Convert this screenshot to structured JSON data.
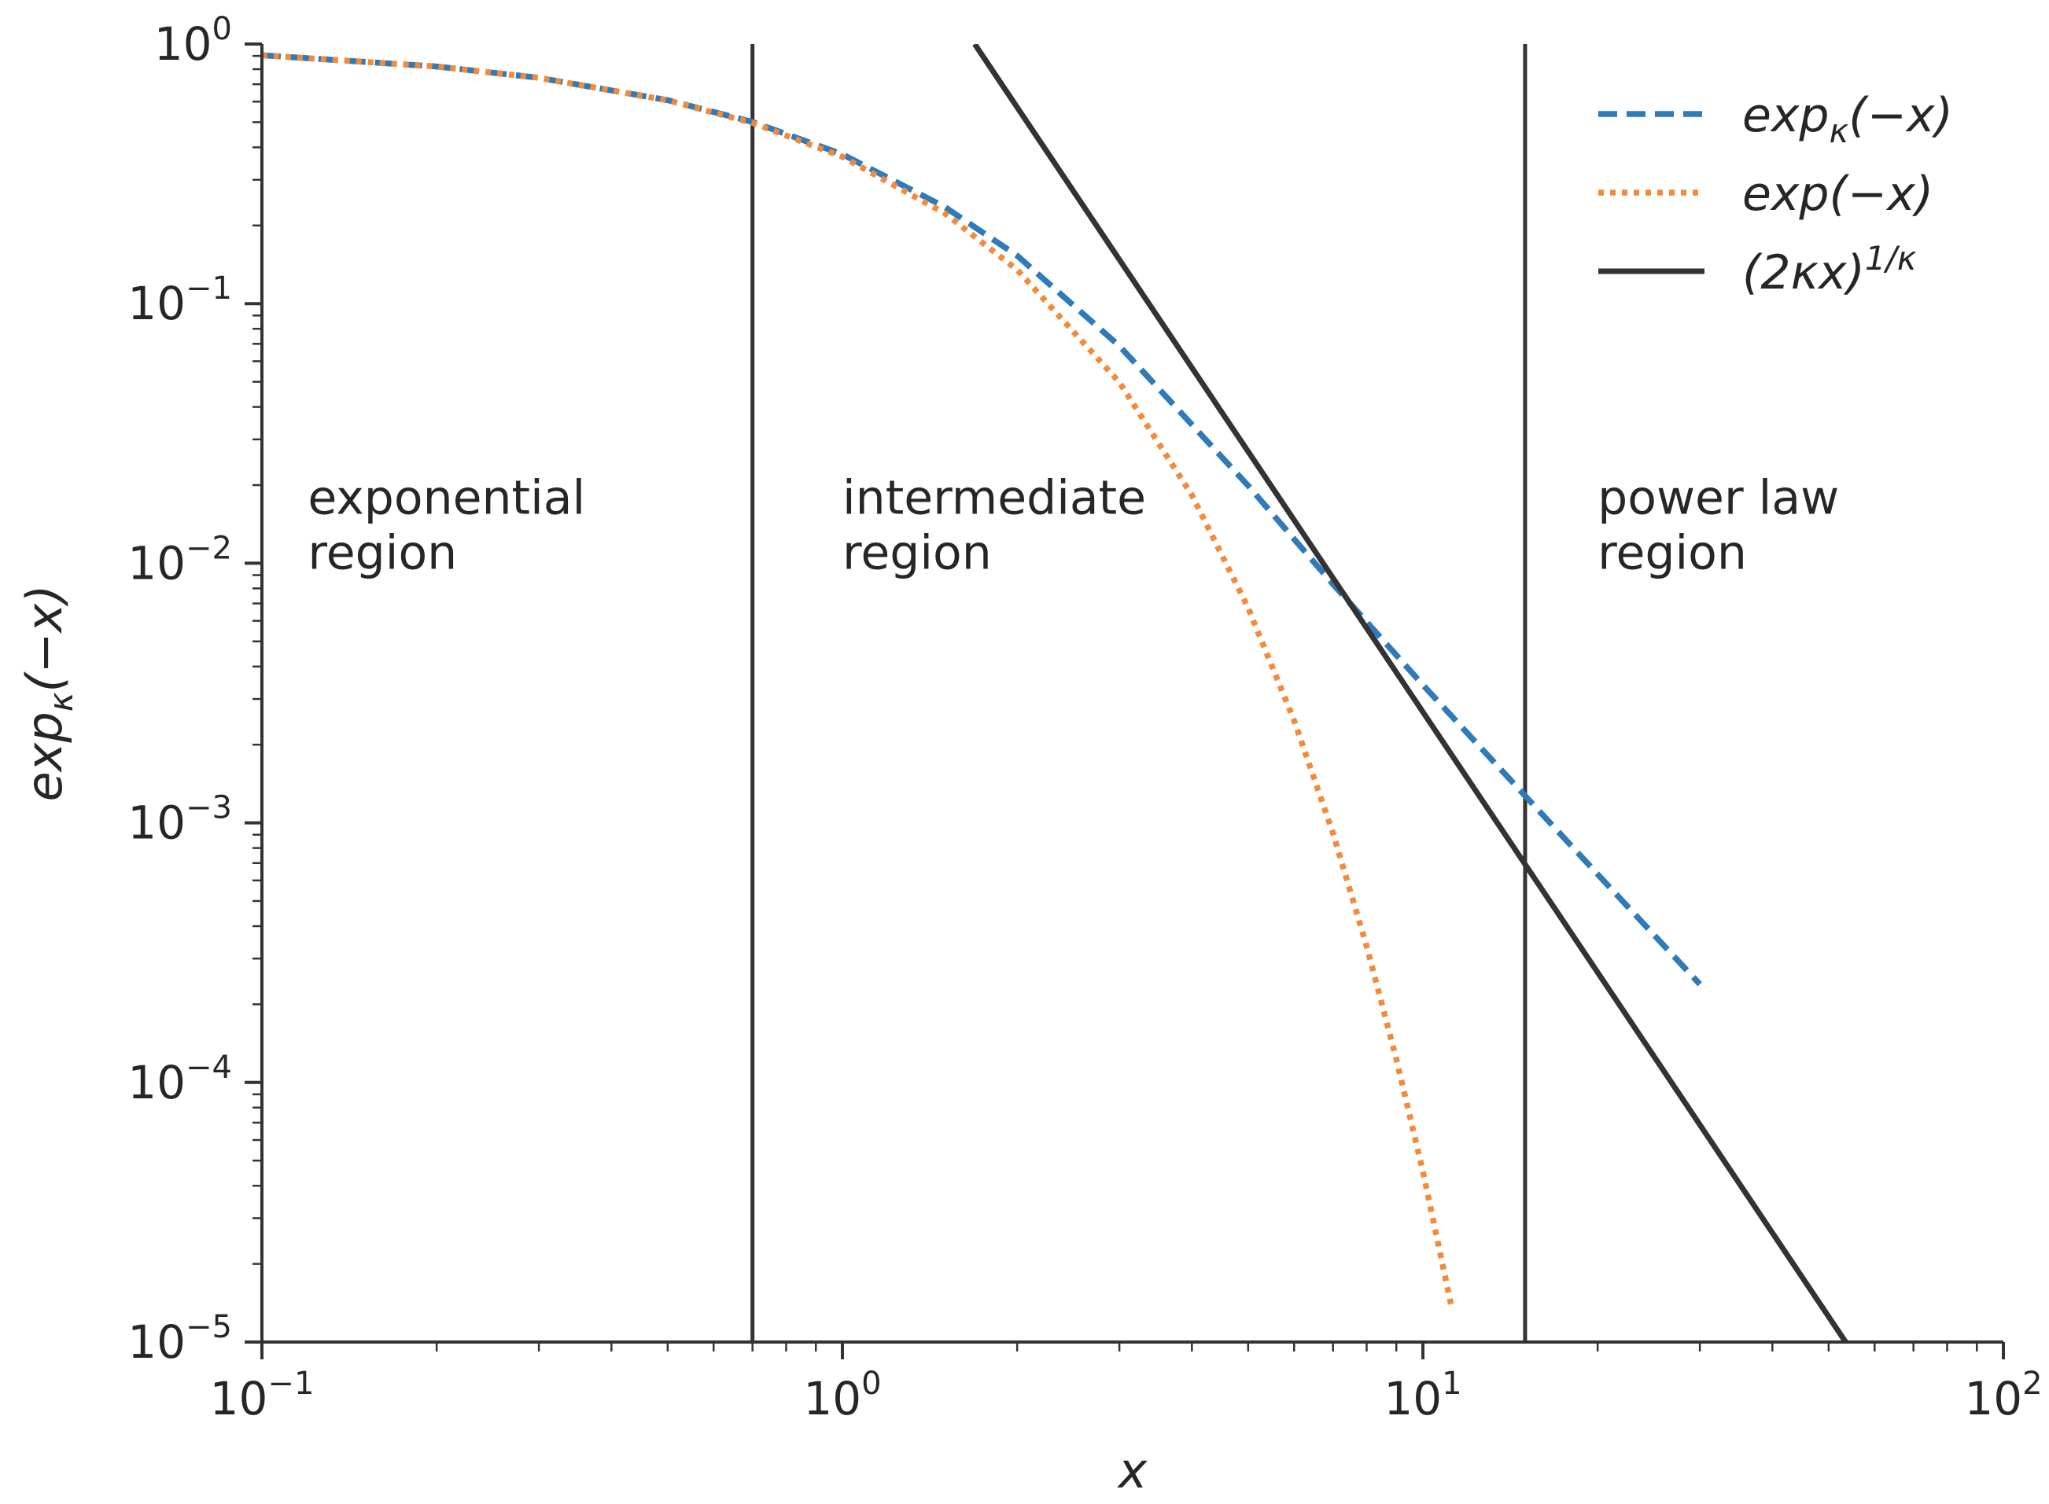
{
  "chart_data": {
    "type": "line",
    "xlabel": "x",
    "ylabel": "exp_κ(−x)",
    "ylabel_parts": {
      "base": "exp",
      "sub": "κ",
      "tail": "(−x)"
    },
    "xscale": "log",
    "yscale": "log",
    "xlim": [
      0.1,
      100
    ],
    "ylim": [
      1e-05,
      1
    ],
    "x_ticks": [
      {
        "base": "10",
        "exp": "−1",
        "value": 0.1
      },
      {
        "base": "10",
        "exp": "0",
        "value": 1
      },
      {
        "base": "10",
        "exp": "1",
        "value": 10
      },
      {
        "base": "10",
        "exp": "2",
        "value": 100
      }
    ],
    "y_ticks": [
      {
        "base": "10",
        "exp": "0",
        "value": 1
      },
      {
        "base": "10",
        "exp": "−1",
        "value": 0.1
      },
      {
        "base": "10",
        "exp": "−2",
        "value": 0.01
      },
      {
        "base": "10",
        "exp": "−3",
        "value": 0.001
      },
      {
        "base": "10",
        "exp": "−4",
        "value": 0.0001
      },
      {
        "base": "10",
        "exp": "−5",
        "value": 1e-05
      }
    ],
    "kappa": 0.7,
    "series": [
      {
        "name": "expκ(−x)",
        "name_parts": {
          "base": "exp",
          "sub": "κ",
          "tail": "(−x)"
        },
        "style": "dashed",
        "color": "#2f7ab8",
        "x": [
          0.1,
          0.2,
          0.3,
          0.5,
          0.7,
          1,
          1.5,
          2,
          3,
          5,
          7,
          10,
          15,
          20,
          30
        ],
        "y": [
          0.905,
          0.819,
          0.741,
          0.608,
          0.501,
          0.376,
          0.236,
          0.153,
          0.0687,
          0.0199,
          0.0083,
          0.0034,
          0.00127,
          0.000634,
          0.000239
        ]
      },
      {
        "name": "exp(−x)",
        "name_parts": {
          "base": "exp",
          "sub": "",
          "tail": "(−x)"
        },
        "style": "dotted",
        "color": "#f28a3c",
        "x": [
          0.1,
          0.2,
          0.3,
          0.5,
          0.7,
          1,
          1.5,
          2,
          3,
          4,
          5,
          6,
          7,
          8,
          9,
          10,
          11.2
        ],
        "y": [
          0.905,
          0.819,
          0.741,
          0.607,
          0.497,
          0.368,
          0.223,
          0.135,
          0.0498,
          0.0183,
          0.00674,
          0.00248,
          0.000912,
          0.000335,
          0.000123,
          4.54e-05,
          1.37e-05
        ]
      },
      {
        "name": "(2κx)1/κ",
        "name_parts": {
          "base": "(2κx)",
          "sup": "1/κ"
        },
        "style": "solid",
        "color": "#333333",
        "x": [
          1.69,
          53.5
        ],
        "y": [
          1,
          1e-05
        ]
      }
    ],
    "vlines": [
      {
        "x": 0.7,
        "color": "#333333"
      },
      {
        "x": 15,
        "color": "#333333"
      }
    ],
    "annotations": [
      {
        "lines": [
          "exponential",
          "region"
        ],
        "x": 0.12,
        "y": 0.0155
      },
      {
        "lines": [
          "intermediate",
          "region"
        ],
        "x": 1.0,
        "y": 0.0155
      },
      {
        "lines": [
          "power law",
          "region"
        ],
        "x": 20,
        "y": 0.0155
      }
    ],
    "legend": {
      "position": "top-right"
    },
    "grid": false
  }
}
